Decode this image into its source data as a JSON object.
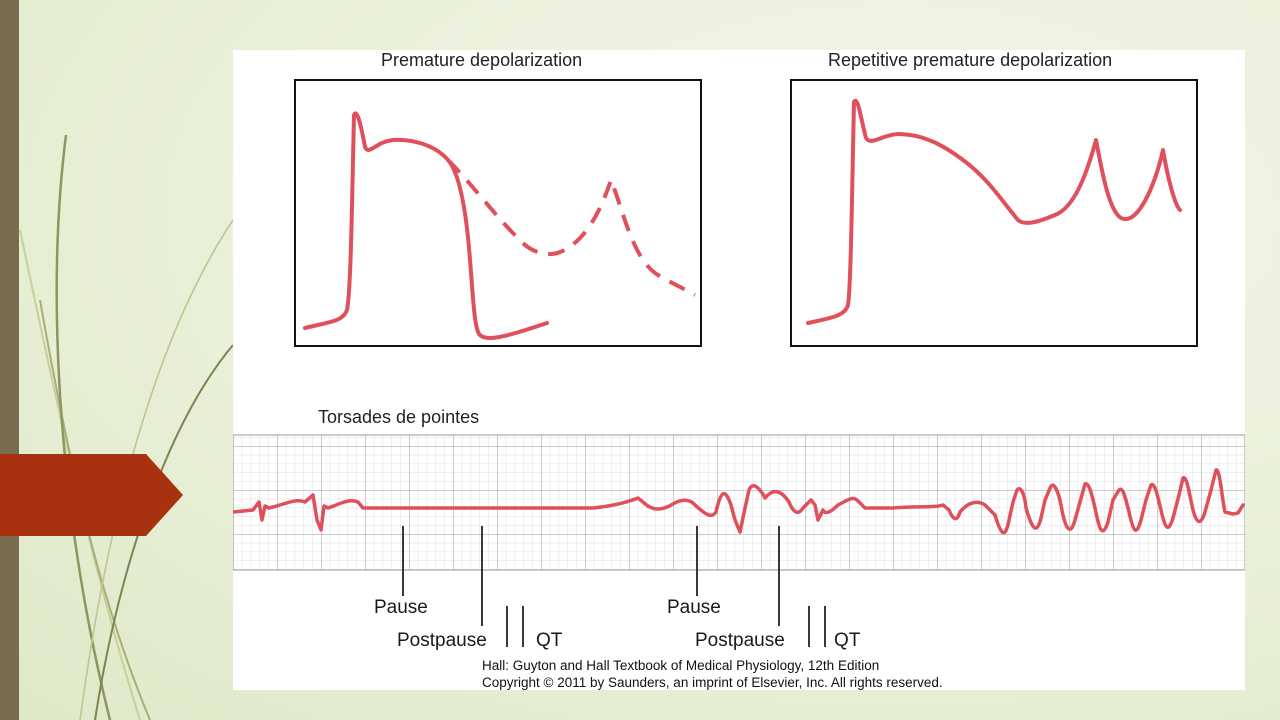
{
  "figure": {
    "panel_left_title": "Premature depolarization",
    "panel_right_title": "Repetitive premature depolarization",
    "panel_bottom_title": "Torsades de pointes",
    "labels": {
      "pause": "Pause",
      "postpause": "Postpause",
      "qt": "QT"
    },
    "credit_line1": "Hall: Guyton and Hall Textbook of Medical Physiology, 12th Edition",
    "credit_line2": "Copyright © 2011 by Saunders, an imprint of Elsevier, Inc. All rights reserved."
  },
  "colors": {
    "trace": "#e0505a",
    "grid": "#bdbdbd",
    "frame": "#111111",
    "accent_arrow": "#a8320f",
    "left_bar": "#7a6c4f"
  }
}
